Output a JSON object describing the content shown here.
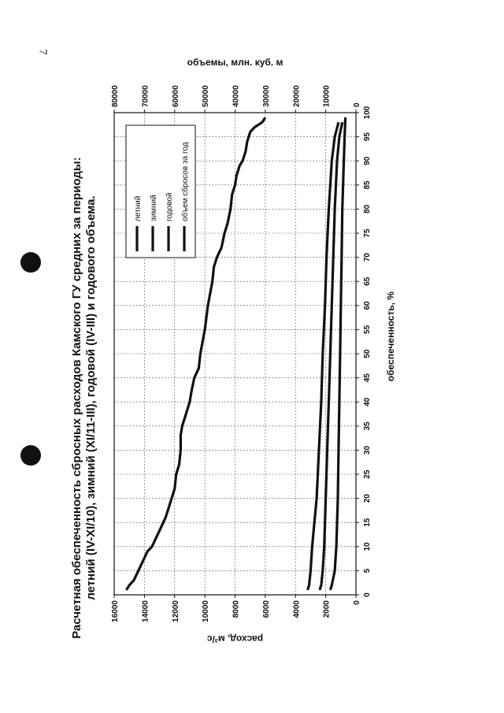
{
  "page": {
    "number": "7"
  },
  "chart_data": {
    "type": "line",
    "title_lines": [
      "Расчетная обеспеченность сбросных расходов Камского ГУ средних за периоды:",
      "летний (IV-XI/10), зимний (XI/11-III), годовой (IV-III) и годового объема."
    ],
    "xlabel": "обеспеченность, %",
    "ylabel": "расход, м³/с",
    "y2label": "объемы, млн. куб. м",
    "xlim": [
      0,
      100
    ],
    "ylim": [
      0,
      16000
    ],
    "y2lim": [
      0,
      80000
    ],
    "xticks": [
      0,
      5,
      10,
      15,
      20,
      25,
      30,
      35,
      40,
      45,
      50,
      55,
      60,
      65,
      70,
      75,
      80,
      85,
      90,
      95,
      100
    ],
    "yticks": [
      0,
      2000,
      4000,
      6000,
      8000,
      10000,
      12000,
      14000,
      16000
    ],
    "y2ticks": [
      0,
      10000,
      20000,
      30000,
      40000,
      50000,
      60000,
      70000,
      80000
    ],
    "grid": true,
    "legend_position": "top-right",
    "series": [
      {
        "name": "летний",
        "axis": "left",
        "points": [
          [
            1,
            3200
          ],
          [
            2,
            3100
          ],
          [
            5,
            3000
          ],
          [
            10,
            2900
          ],
          [
            15,
            2750
          ],
          [
            20,
            2600
          ],
          [
            30,
            2450
          ],
          [
            40,
            2300
          ],
          [
            50,
            2200
          ],
          [
            60,
            2050
          ],
          [
            70,
            1950
          ],
          [
            80,
            1800
          ],
          [
            90,
            1600
          ],
          [
            95,
            1400
          ],
          [
            98,
            1150
          ]
        ]
      },
      {
        "name": "зимний",
        "axis": "left",
        "points": [
          [
            1,
            1700
          ],
          [
            2,
            1600
          ],
          [
            5,
            1400
          ],
          [
            10,
            1300
          ],
          [
            20,
            1200
          ],
          [
            30,
            1150
          ],
          [
            40,
            1100
          ],
          [
            50,
            1050
          ],
          [
            60,
            1000
          ],
          [
            70,
            950
          ],
          [
            80,
            900
          ],
          [
            90,
            800
          ],
          [
            95,
            750
          ],
          [
            99,
            700
          ]
        ]
      },
      {
        "name": "годовой",
        "axis": "left",
        "points": [
          [
            1,
            2400
          ],
          [
            2,
            2300
          ],
          [
            5,
            2200
          ],
          [
            10,
            2100
          ],
          [
            20,
            2000
          ],
          [
            30,
            1900
          ],
          [
            40,
            1800
          ],
          [
            50,
            1700
          ],
          [
            60,
            1600
          ],
          [
            70,
            1500
          ],
          [
            80,
            1400
          ],
          [
            90,
            1250
          ],
          [
            95,
            1100
          ],
          [
            98,
            900
          ]
        ]
      },
      {
        "name": "объем сбросов за год",
        "axis": "right",
        "points": [
          [
            1,
            76000
          ],
          [
            2,
            75000
          ],
          [
            3,
            73500
          ],
          [
            5,
            72000
          ],
          [
            7,
            70500
          ],
          [
            9,
            69000
          ],
          [
            10,
            67500
          ],
          [
            12,
            66000
          ],
          [
            14,
            64500
          ],
          [
            16,
            63000
          ],
          [
            18,
            62000
          ],
          [
            20,
            61000
          ],
          [
            22,
            60000
          ],
          [
            25,
            59500
          ],
          [
            27,
            58500
          ],
          [
            30,
            58000
          ],
          [
            33,
            58000
          ],
          [
            35,
            57500
          ],
          [
            37,
            56500
          ],
          [
            40,
            55000
          ],
          [
            42,
            54500
          ],
          [
            45,
            53500
          ],
          [
            47,
            52000
          ],
          [
            50,
            51500
          ],
          [
            55,
            50000
          ],
          [
            60,
            49000
          ],
          [
            65,
            47500
          ],
          [
            68,
            47000
          ],
          [
            70,
            46000
          ],
          [
            72,
            44500
          ],
          [
            75,
            43500
          ],
          [
            77,
            42500
          ],
          [
            80,
            41500
          ],
          [
            83,
            41000
          ],
          [
            85,
            40000
          ],
          [
            87,
            39500
          ],
          [
            89,
            38500
          ],
          [
            90,
            37500
          ],
          [
            92,
            36500
          ],
          [
            94,
            36000
          ],
          [
            96,
            35000
          ],
          [
            97,
            33500
          ],
          [
            98,
            31000
          ],
          [
            99,
            30000
          ]
        ]
      }
    ]
  }
}
